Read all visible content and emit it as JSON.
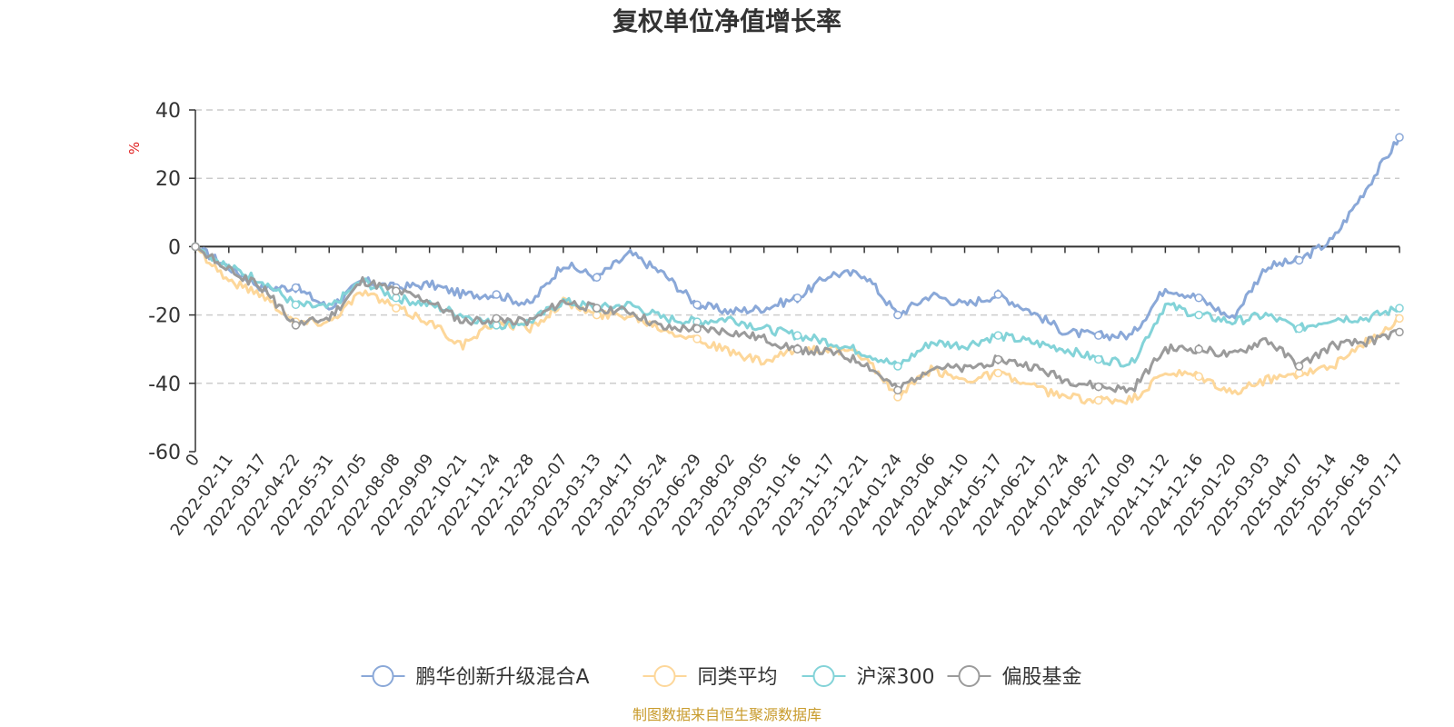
{
  "chart_data": {
    "type": "line",
    "title": "复权单位净值增长率",
    "ylabel": "%",
    "ylim": [
      -60,
      40
    ],
    "yticks": [
      40,
      20,
      0,
      -20,
      -40,
      -60
    ],
    "grid": true,
    "legend_position": "bottom",
    "source": "制图数据来自恒生聚源数据库",
    "x": [
      "0",
      "2022-02-11",
      "2022-03-17",
      "2022-04-22",
      "2022-05-31",
      "2022-07-05",
      "2022-08-08",
      "2022-09-09",
      "2022-10-21",
      "2022-11-24",
      "2022-12-28",
      "2023-02-07",
      "2023-03-13",
      "2023-04-17",
      "2023-05-24",
      "2023-06-29",
      "2023-08-02",
      "2023-09-05",
      "2023-10-16",
      "2023-11-17",
      "2023-12-21",
      "2024-01-24",
      "2024-03-06",
      "2024-04-10",
      "2024-05-17",
      "2024-06-21",
      "2024-07-24",
      "2024-08-27",
      "2024-10-09",
      "2024-11-12",
      "2024-12-16",
      "2025-01-20",
      "2025-03-03",
      "2025-04-07",
      "2025-05-14",
      "2025-06-18",
      "2025-07-17"
    ],
    "series": [
      {
        "name": "鹏华创新升级混合A",
        "color": "#8aa8d8",
        "values": [
          0,
          -6,
          -12,
          -12,
          -18,
          -10,
          -12,
          -11,
          -14,
          -14,
          -17,
          -5,
          -9,
          -2,
          -8,
          -17,
          -19,
          -18,
          -15,
          -8,
          -8,
          -20,
          -14,
          -17,
          -14,
          -19,
          -25,
          -26,
          -26,
          -12,
          -15,
          -21,
          -6,
          -4,
          2,
          17,
          32
        ]
      },
      {
        "name": "同类平均",
        "color": "#fdd79a",
        "values": [
          0,
          -10,
          -14,
          -22,
          -22,
          -13,
          -18,
          -22,
          -29,
          -22,
          -24,
          -16,
          -20,
          -20,
          -24,
          -27,
          -31,
          -34,
          -30,
          -30,
          -32,
          -44,
          -36,
          -39,
          -37,
          -41,
          -44,
          -45,
          -45,
          -37,
          -38,
          -43,
          -39,
          -37,
          -35,
          -28,
          -21
        ]
      },
      {
        "name": "沪深300",
        "color": "#83d3d8",
        "values": [
          0,
          -6,
          -10,
          -17,
          -18,
          -10,
          -15,
          -17,
          -20,
          -23,
          -22,
          -16,
          -18,
          -17,
          -21,
          -22,
          -21,
          -24,
          -26,
          -28,
          -31,
          -35,
          -28,
          -29,
          -26,
          -28,
          -30,
          -33,
          -34,
          -17,
          -20,
          -22,
          -20,
          -24,
          -21,
          -21,
          -18
        ]
      },
      {
        "name": "偏股基金",
        "color": "#9b9b9b",
        "values": [
          0,
          -7,
          -12,
          -23,
          -21,
          -10,
          -13,
          -16,
          -22,
          -21,
          -22,
          -16,
          -18,
          -19,
          -24,
          -24,
          -25,
          -27,
          -30,
          -31,
          -34,
          -42,
          -35,
          -36,
          -33,
          -35,
          -39,
          -41,
          -42,
          -30,
          -30,
          -32,
          -27,
          -35,
          -29,
          -28,
          -25
        ]
      }
    ]
  }
}
